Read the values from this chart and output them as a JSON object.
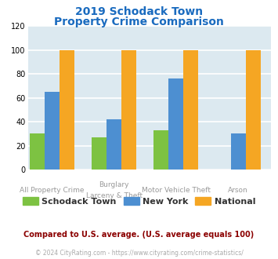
{
  "title_line1": "2019 Schodack Town",
  "title_line2": "Property Crime Comparison",
  "title_color": "#1a6bbf",
  "label1": [
    "All Property Crime",
    "Burglary",
    "Motor Vehicle Theft",
    "Arson"
  ],
  "label2": [
    "",
    "Larceny & Theft",
    "",
    ""
  ],
  "schodack": [
    30,
    27,
    33,
    0
  ],
  "newyork": [
    65,
    42,
    76,
    30
  ],
  "national": [
    100,
    100,
    100,
    100
  ],
  "bar_colors": {
    "schodack": "#7dc242",
    "newyork": "#4d8fd1",
    "national": "#f5a623"
  },
  "legend_labels": [
    "Schodack Town",
    "New York",
    "National"
  ],
  "legend_text_color": "#333333",
  "ylim": [
    0,
    120
  ],
  "yticks": [
    0,
    20,
    40,
    60,
    80,
    100,
    120
  ],
  "note_text": "Compared to U.S. average. (U.S. average equals 100)",
  "note_color": "#8b0000",
  "copyright_text": "© 2024 CityRating.com - https://www.cityrating.com/crime-statistics/",
  "copyright_color": "#aaaaaa",
  "plot_bg_color": "#dce9f0",
  "grid_color": "#ffffff",
  "label_color": "#999999"
}
